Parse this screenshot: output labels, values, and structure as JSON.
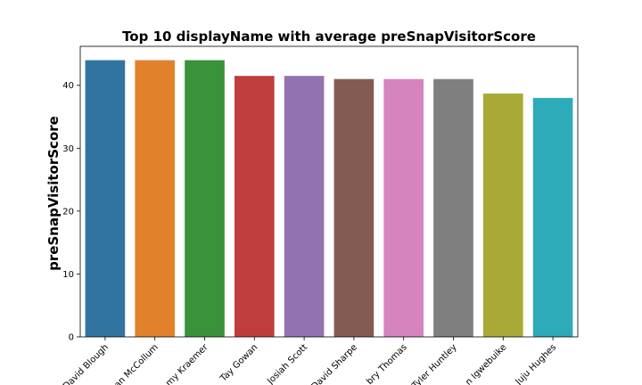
{
  "chart_data": {
    "type": "bar",
    "title": "Top 10 displayName with average preSnapVisitorScore",
    "xlabel": "",
    "ylabel": "preSnapVisitorScore",
    "categories": [
      "David Blough",
      "an McCollum",
      "my Kraemer",
      "Tay Gowan",
      "Josiah Scott",
      "David Sharpe",
      "bry Thomas",
      "Tyler Huntley",
      "n Igwebuike",
      "Juju Hughes"
    ],
    "values": [
      44,
      44,
      44,
      41.5,
      41.5,
      41,
      41,
      41,
      38.7,
      38
    ],
    "colors": [
      "#3274a1",
      "#e1812c",
      "#3a923a",
      "#c03d3e",
      "#9372b2",
      "#845b53",
      "#d684bd",
      "#7f7f7f",
      "#a9aa35",
      "#2eabb8"
    ],
    "ylim": [
      0,
      46.2
    ],
    "yticks": [
      0,
      10,
      20,
      30,
      40
    ],
    "grid": false,
    "legend": "none"
  }
}
